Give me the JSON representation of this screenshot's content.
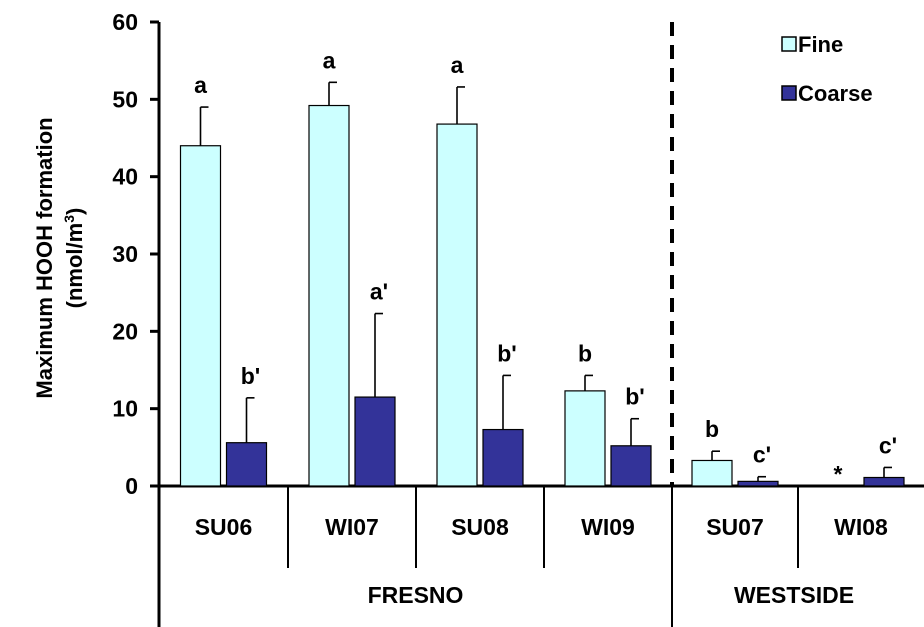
{
  "chart_data": {
    "type": "bar",
    "ylabel_line1": "Maximum HOOH formation",
    "ylabel_line2_prefix": "(nmol/m",
    "ylabel_line2_sup": "3",
    "ylabel_line2_suffix": ")",
    "ylim": [
      0,
      60
    ],
    "yticks": [
      "0",
      "10",
      "20",
      "30",
      "40",
      "50",
      "60"
    ],
    "categories": [
      "SU06",
      "WI07",
      "SU08",
      "WI09",
      "SU07",
      "WI08"
    ],
    "groups": [
      {
        "label": "FRESNO",
        "categories": [
          "SU06",
          "WI07",
          "SU08",
          "WI09"
        ]
      },
      {
        "label": "WESTSIDE",
        "categories": [
          "SU07",
          "WI08"
        ]
      }
    ],
    "series": [
      {
        "name": "Fine",
        "color": "#ccffff",
        "values": [
          44.0,
          49.2,
          46.8,
          12.3,
          3.3,
          null
        ],
        "errors": [
          5.0,
          3.0,
          4.8,
          2.0,
          1.2,
          null
        ],
        "labels": [
          "a",
          "a",
          "a",
          "b",
          "b",
          "*"
        ]
      },
      {
        "name": "Coarse",
        "color": "#333399",
        "values": [
          5.6,
          11.5,
          7.3,
          5.2,
          0.6,
          1.1
        ],
        "errors": [
          5.8,
          10.8,
          7.0,
          3.5,
          0.6,
          1.3
        ],
        "labels": [
          "b'",
          "a'",
          "b'",
          "b'",
          "c'",
          "c'"
        ]
      }
    ],
    "legend_position": "top-right",
    "grid": false
  }
}
